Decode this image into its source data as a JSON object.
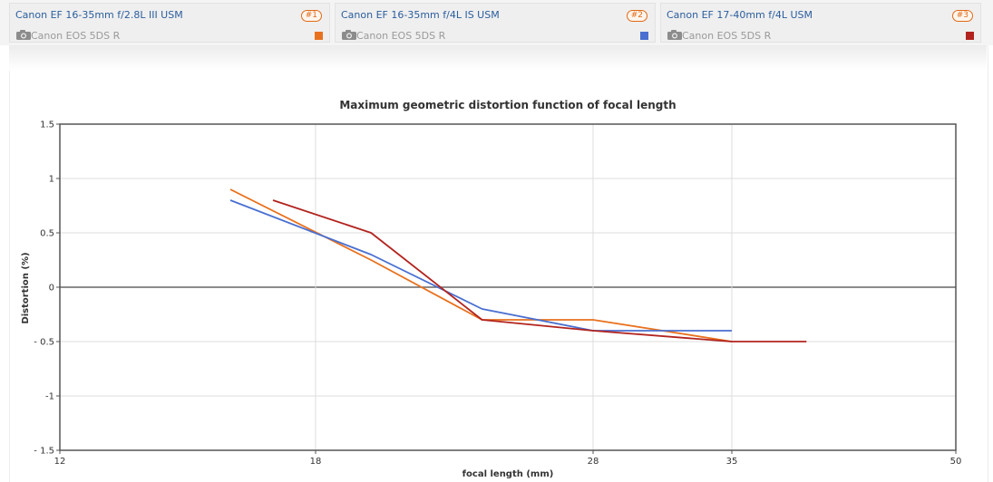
{
  "lenses": [
    {
      "name": "Canon EF 16-35mm f/2.8L III USM",
      "badge": "#1",
      "camera": "Canon EOS 5DS R",
      "color": "#e8711e"
    },
    {
      "name": "Canon EF 16-35mm f/4L IS USM",
      "badge": "#2",
      "camera": "Canon EOS 5DS R",
      "color": "#4a6fd0"
    },
    {
      "name": "Canon EF 17-40mm f/4L USM",
      "badge": "#3",
      "camera": "Canon EOS 5DS R",
      "color": "#b2231e"
    }
  ],
  "chart_data": {
    "type": "line",
    "title": "Maximum geometric distortion function of focal length",
    "xlabel": "focal length (mm)",
    "ylabel": "Distortion (%)",
    "xlim": [
      12,
      50
    ],
    "ylim": [
      -1.5,
      1.5
    ],
    "xticks": [
      12,
      18,
      28,
      35,
      50
    ],
    "xtick_labels": [
      "12",
      "18",
      "28",
      "35",
      "50"
    ],
    "yticks": [
      1.5,
      1,
      0.5,
      0,
      -0.5,
      -1,
      -1.5
    ],
    "ytick_labels": [
      "1.5",
      "1",
      "0.5",
      "0",
      "- 0.5",
      "-1",
      "- 1.5"
    ],
    "grid": true,
    "series": [
      {
        "name": "Canon EF 16-35mm f/2.8L III USM",
        "color": "#e8711e",
        "x": [
          16,
          20,
          24,
          28,
          35
        ],
        "y": [
          0.9,
          0.25,
          -0.3,
          -0.3,
          -0.5
        ]
      },
      {
        "name": "Canon EF 16-35mm f/4L IS USM",
        "color": "#4a6fd0",
        "x": [
          16,
          20,
          24,
          28,
          35
        ],
        "y": [
          0.8,
          0.3,
          -0.2,
          -0.4,
          -0.4
        ]
      },
      {
        "name": "Canon EF 17-40mm f/4L USM",
        "color": "#b2231e",
        "x": [
          17,
          20,
          24,
          28,
          35,
          40
        ],
        "y": [
          0.8,
          0.5,
          -0.3,
          -0.4,
          -0.5,
          -0.5
        ]
      }
    ]
  }
}
